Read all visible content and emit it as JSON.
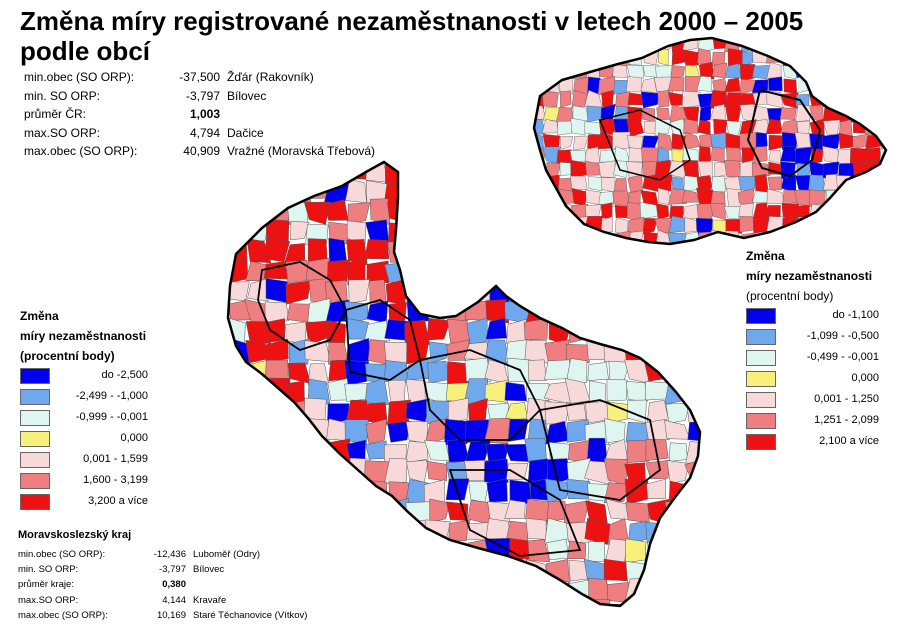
{
  "title": "Změna míry registrované nezaměstnanosti v letech 2000 – 2005 podle obcí",
  "colors": {
    "c1": "#0000ee",
    "c2": "#6fa8ec",
    "c3": "#dff5ef",
    "c4": "#f7f07a",
    "c5": "#f8d9da",
    "c6": "#ee7e80",
    "c7": "#ee1111",
    "border": "#000000"
  },
  "cr_stats": [
    {
      "label": "min.obec (SO ORP):",
      "value": "-37,500",
      "name": "Žďár (Rakovník)",
      "bold": false
    },
    {
      "label": "min. SO ORP:",
      "value": "-3,797",
      "name": "Bílovec",
      "bold": false
    },
    {
      "label": "průměr ČR:",
      "value": "1,003",
      "name": "",
      "bold": true
    },
    {
      "label": "max.SO ORP:",
      "value": "4,794",
      "name": "Dačice",
      "bold": false
    },
    {
      "label": "max.obec (SO ORP):",
      "value": "40,909",
      "name": "Vražné (Moravská Třebová)",
      "bold": false
    }
  ],
  "msk_stats": {
    "heading": "Moravskoslezský kraj",
    "rows": [
      {
        "label": "min.obec (SO ORP):",
        "value": "-12,436",
        "name": "Luboměř (Odry)",
        "bold": false
      },
      {
        "label": "min. SO ORP:",
        "value": "-3,797",
        "name": "Bílovec",
        "bold": false
      },
      {
        "label": "průměr kraje:",
        "value": "0,380",
        "name": "",
        "bold": true
      },
      {
        "label": "max.SO ORP:",
        "value": "4,144",
        "name": "Kravaře",
        "bold": false
      },
      {
        "label": "max.obec (SO ORP):",
        "value": "10,169",
        "name": "Staré Těchanovice (Vítkov)",
        "bold": false
      }
    ]
  },
  "legend_msk": {
    "title1": "Změna",
    "title2": "míry nezaměstnanosti",
    "title3": "(procentní body)",
    "items": [
      {
        "label": "do -2,500",
        "color": "#0000ee"
      },
      {
        "label": "-2,499 - -1,000",
        "color": "#6fa8ec"
      },
      {
        "label": "-0,999 - -0,001",
        "color": "#dff5ef"
      },
      {
        "label": "0,000",
        "color": "#f7f07a"
      },
      {
        "label": "0,001 - 1,599",
        "color": "#f8d9da"
      },
      {
        "label": "1,600 - 3,199",
        "color": "#ee7e80"
      },
      {
        "label": "3,200 a více",
        "color": "#ee1111"
      }
    ]
  },
  "legend_cr": {
    "title1": "Změna",
    "title2": "míry nezaměstnanosti",
    "title3": "(procentní body)",
    "items": [
      {
        "label": "do -1,100",
        "color": "#0000ee"
      },
      {
        "label": "-1,099 - -0,500",
        "color": "#6fa8ec"
      },
      {
        "label": "-0,499 - -0,001",
        "color": "#dff5ef"
      },
      {
        "label": "0,000",
        "color": "#f7f07a"
      },
      {
        "label": "0,001 - 1,250",
        "color": "#f8d9da"
      },
      {
        "label": "1,251 - 2,099",
        "color": "#ee7e80"
      },
      {
        "label": "2,100 a více",
        "color": "#ee1111"
      }
    ]
  }
}
